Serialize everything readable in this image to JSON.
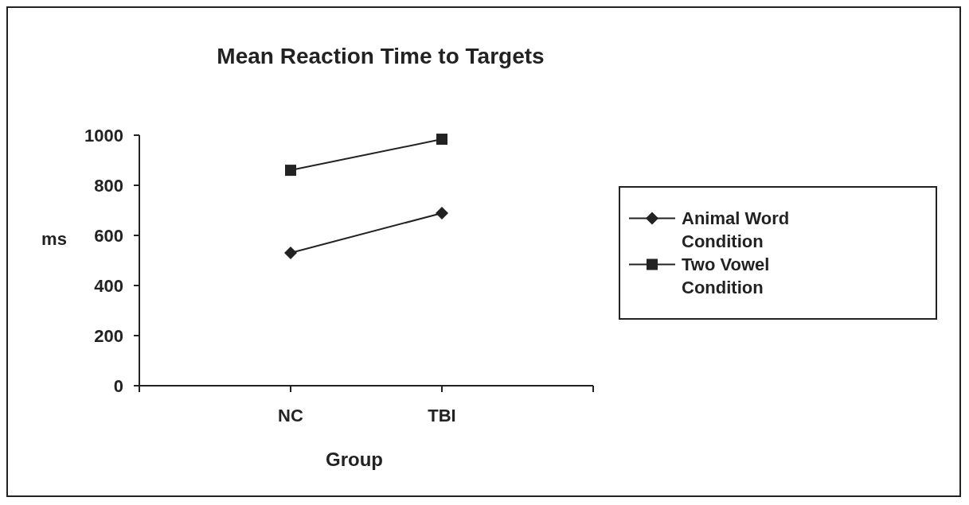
{
  "chart_data": {
    "type": "line",
    "title": "Mean Reaction Time to Targets",
    "xlabel": "Group",
    "ylabel": "ms",
    "categories": [
      "NC",
      "TBI"
    ],
    "series": [
      {
        "name": "Animal Word Condition",
        "color": "#222222",
        "marker": "diamond",
        "values": [
          530,
          689
        ]
      },
      {
        "name": "Two Vowel Condition",
        "color": "#222222",
        "marker": "square",
        "values": [
          860,
          984
        ]
      }
    ],
    "ylim": [
      0,
      1000
    ],
    "yticks": [
      0,
      200,
      400,
      600,
      800,
      1000
    ],
    "legend": "right",
    "grid": false
  }
}
